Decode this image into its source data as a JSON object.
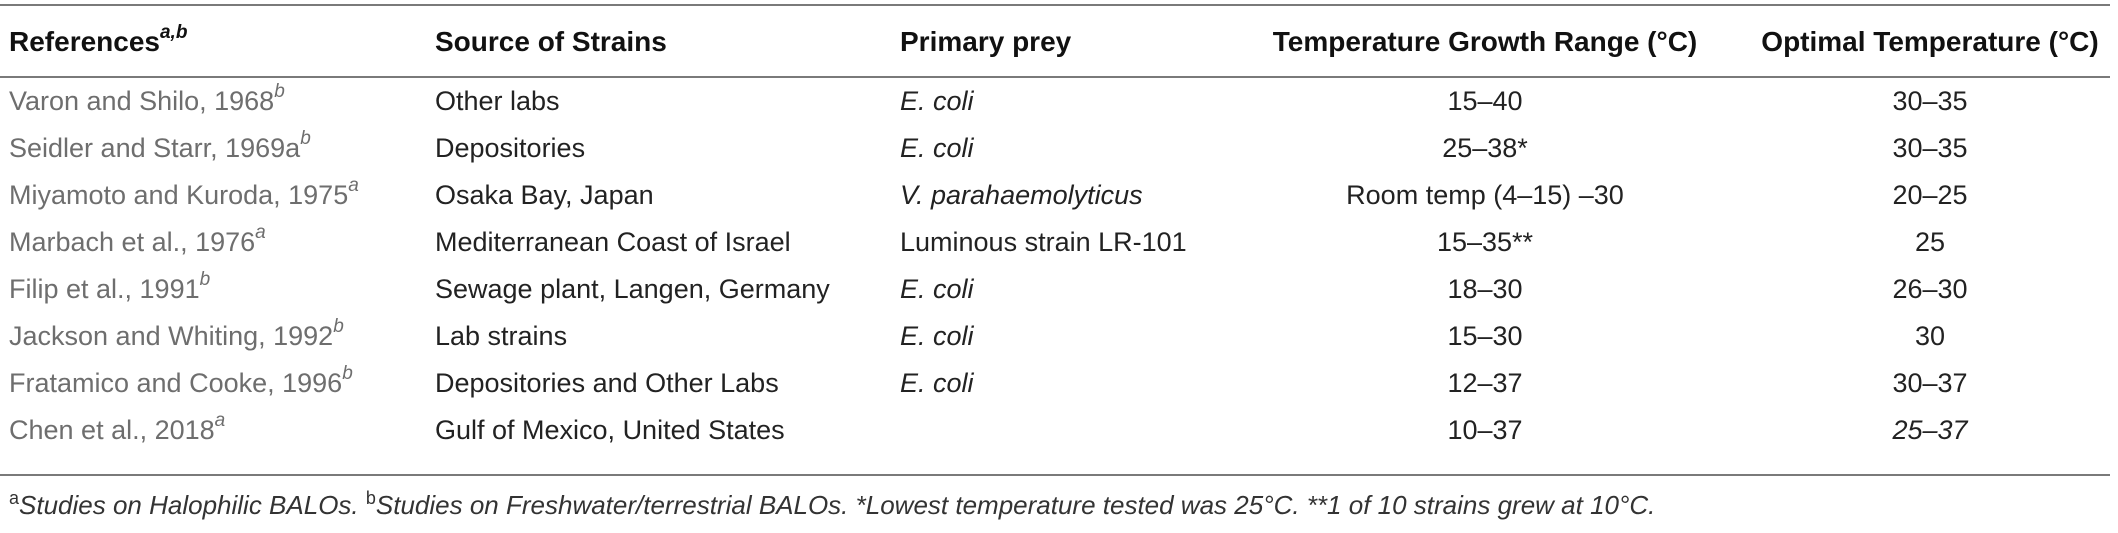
{
  "table": {
    "headers": {
      "references": "References",
      "references_sup": "a,b",
      "source": "Source of Strains",
      "prey": "Primary prey",
      "temp_range": "Temperature Growth Range (°C)",
      "optimal": "Optimal Temperature (°C)"
    },
    "rows": [
      {
        "ref": "Varon and Shilo, 1968",
        "sup": "b",
        "source": "Other labs",
        "prey": "E. coli",
        "range": "15–40",
        "optimal": "30–35",
        "optimal_italic": false
      },
      {
        "ref": "Seidler and Starr, 1969a",
        "sup": "b",
        "source": "Depositories",
        "prey": "E. coli",
        "range": "25–38*",
        "optimal": "30–35",
        "optimal_italic": false
      },
      {
        "ref": "Miyamoto and Kuroda, 1975",
        "sup": "a",
        "source": "Osaka Bay, Japan",
        "prey": "V. parahaemolyticus",
        "range": "Room temp (4–15) –30",
        "optimal": "20–25",
        "optimal_italic": false
      },
      {
        "ref": "Marbach et al., 1976",
        "sup": "a",
        "source": "Mediterranean Coast of Israel",
        "prey": "Luminous strain LR-101",
        "prey_plain": true,
        "range": "15–35**",
        "optimal": "25",
        "optimal_italic": false
      },
      {
        "ref": "Filip et al., 1991",
        "sup": "b",
        "source": "Sewage plant, Langen, Germany",
        "prey": "E. coli",
        "range": "18–30",
        "optimal": "26–30",
        "optimal_italic": false
      },
      {
        "ref": "Jackson and Whiting, 1992",
        "sup": "b",
        "source": "Lab strains",
        "prey": "E. coli",
        "range": "15–30",
        "optimal": "30",
        "optimal_italic": false
      },
      {
        "ref": "Fratamico and Cooke, 1996",
        "sup": "b",
        "source": "Depositories and Other Labs",
        "prey": "E. coli",
        "range": "12–37",
        "optimal": "30–37",
        "optimal_italic": false
      },
      {
        "ref": "Chen et al., 2018",
        "sup": "a",
        "source": "Gulf of Mexico, United States",
        "prey": "",
        "range": "10–37",
        "optimal": "25–37",
        "optimal_italic": true
      }
    ]
  },
  "footnote": {
    "a_mark": "a",
    "a_text": "Studies on Halophilic BALOs.",
    "b_mark": "b",
    "b_text": "Studies on Freshwater/terrestrial BALOs. *Lowest temperature tested was 25°C. **1 of 10 strains grew at 10°C."
  }
}
